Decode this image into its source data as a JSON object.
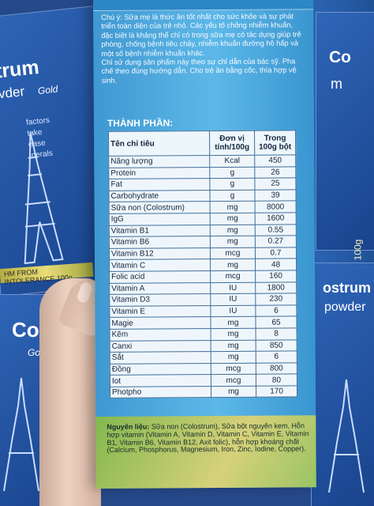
{
  "background": {
    "left_box_upper": {
      "line1": "trum",
      "line2": "vder",
      "line3": "Gold"
    },
    "left_box_lower": {
      "line1": "Co",
      "line2": "Gold"
    },
    "left_strip": "HM FROM INTOLERANCE 100g",
    "right_box_upper": {
      "line1": "Co",
      "line2": "m"
    },
    "right_box_lower": {
      "line1": "ostrum",
      "line2": "powder"
    },
    "right_side_label": "100g",
    "left_small_lines": [
      "factors",
      "take",
      "ease",
      "inerals"
    ],
    "colors": {
      "shelf": "#26498a",
      "box": "#4aaee4",
      "table": "#eff6fb"
    }
  },
  "box": {
    "notes": "Chú ý: Sữa mẹ là thức ăn tốt nhất cho sức khỏe và sự phát triển toàn diện của trẻ nhỏ. Các yếu tố chống nhiễm khuẩn, đặc biệt là kháng thể chỉ có trong sữa mẹ có tác dụng giúp trẻ phòng, chống bệnh tiêu chảy, nhiễm khuẩn đường hô hấp và một số bệnh nhiễm khuẩn khác.",
    "usage": "Chỉ sử dụng sản phẩm này theo sự chỉ dẫn của bác sỹ. Pha chế theo đúng hướng dẫn. Cho trẻ ăn bằng cốc, thìa hợp vệ sinh.",
    "section_title": "THÀNH PHẦN:",
    "table": {
      "headers": [
        "Tên chỉ tiêu",
        "Đơn vị tính/100g",
        "Trong 100g bột"
      ],
      "rows": [
        [
          "Năng lượng",
          "Kcal",
          "450"
        ],
        [
          "Protein",
          "g",
          "26"
        ],
        [
          "Fat",
          "g",
          "25"
        ],
        [
          "Carbohydrate",
          "g",
          "39"
        ],
        [
          "Sữa non (Colostrum)",
          "mg",
          "8000"
        ],
        [
          "IgG",
          "mg",
          "1600"
        ],
        [
          "Vitamin B1",
          "mg",
          "0.55"
        ],
        [
          "Vitamin B6",
          "mg",
          "0.27"
        ],
        [
          "Vitamin B12",
          "mcg",
          "0.7"
        ],
        [
          "Vitamin C",
          "mg",
          "48"
        ],
        [
          "Folic acid",
          "mcg",
          "160"
        ],
        [
          "Vitamin A",
          "IU",
          "1800"
        ],
        [
          "Vitamin D3",
          "IU",
          "230"
        ],
        [
          "Vitamin E",
          "IU",
          "6"
        ],
        [
          "Magie",
          "mg",
          "65"
        ],
        [
          "Kẽm",
          "mg",
          "8"
        ],
        [
          "Canxi",
          "mg",
          "850"
        ],
        [
          "Sắt",
          "mg",
          "6"
        ],
        [
          "Đồng",
          "mcg",
          "800"
        ],
        [
          "Iot",
          "mcg",
          "80"
        ],
        [
          "Photpho",
          "mg",
          "170"
        ]
      ]
    },
    "ingredients_label": "Nguyên liệu:",
    "ingredients_text": "Sữa non (Colostrum), Sữa bột nguyên kem, Hỗn hợp vitamin (Vitamin A, Vitamin D, Vitamin C, Vitamin E, Vitamin B1, Vitamin B6, Vitamin B12, Axit folic), hỗn hợp khoáng chất (Calcium, Phosphorus, Magnesium, Iron, Zinc, Iodine, Copper)."
  }
}
